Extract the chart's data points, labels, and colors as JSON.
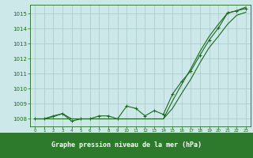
{
  "title": "Graphe pression niveau de la mer (hPa)",
  "hours": [
    0,
    1,
    2,
    3,
    4,
    5,
    6,
    7,
    8,
    9,
    10,
    11,
    12,
    13,
    14,
    15,
    16,
    17,
    18,
    19,
    20,
    21,
    22,
    23
  ],
  "line_upper": [
    1008.0,
    1008.0,
    1008.15,
    1008.35,
    1008.0,
    1008.0,
    1008.0,
    1008.0,
    1008.0,
    1008.0,
    1008.0,
    1008.0,
    1008.0,
    1008.0,
    1008.0,
    1009.2,
    1010.3,
    1011.35,
    1012.5,
    1013.5,
    1014.3,
    1015.05,
    1015.2,
    1015.45
  ],
  "line_lower": [
    1008.0,
    1008.0,
    1008.0,
    1008.0,
    1008.0,
    1008.0,
    1008.0,
    1008.0,
    1008.0,
    1008.0,
    1008.0,
    1008.0,
    1008.0,
    1008.0,
    1008.0,
    1008.7,
    1009.7,
    1010.65,
    1011.75,
    1012.75,
    1013.5,
    1014.3,
    1014.9,
    1015.1
  ],
  "line_measured": [
    1008.0,
    1008.0,
    1008.2,
    1008.35,
    1007.85,
    1008.0,
    1008.0,
    1008.2,
    1008.2,
    1008.0,
    1008.85,
    1008.7,
    1008.2,
    1008.55,
    1008.3,
    1009.65,
    1010.5,
    1011.2,
    1012.25,
    1013.25,
    1014.05,
    1015.05,
    1015.2,
    1015.35
  ],
  "ylim": [
    1007.5,
    1015.6
  ],
  "yticks": [
    1008,
    1009,
    1010,
    1011,
    1012,
    1013,
    1014,
    1015
  ],
  "line_color": "#1a6b1a",
  "bg_color": "#cce8e8",
  "grid_color": "#a8c8c8",
  "title_bg": "#2d7a2d",
  "title_fg": "#ffffff"
}
